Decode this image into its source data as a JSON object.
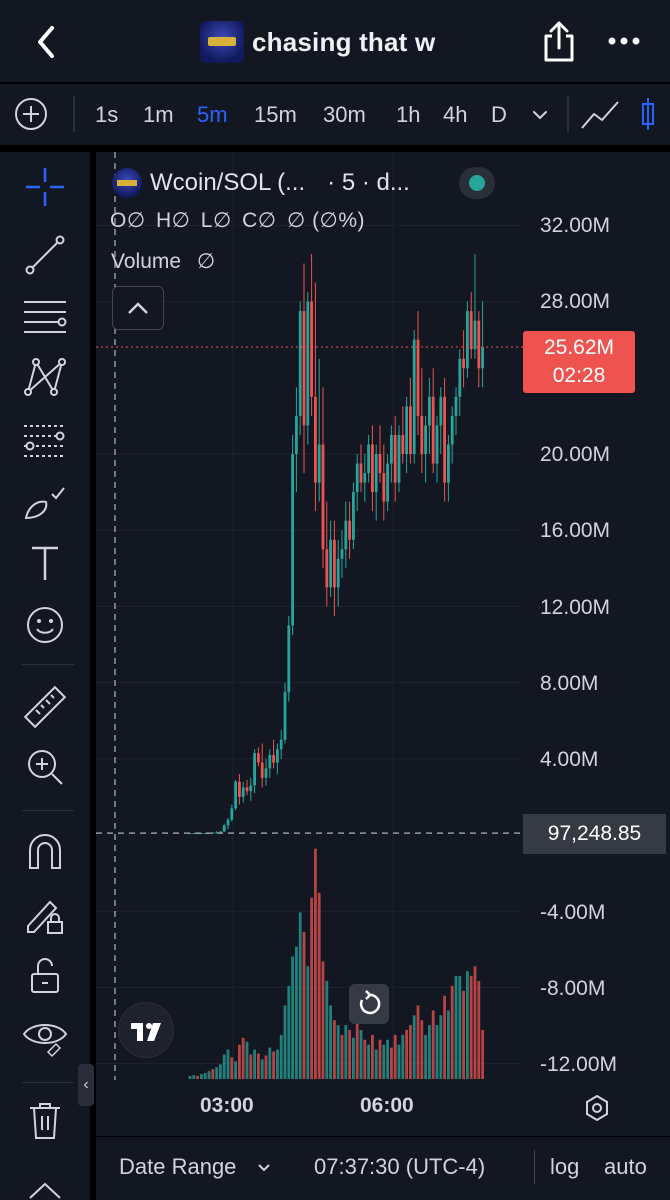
{
  "header": {
    "title": "chasing that w"
  },
  "toolbar": {
    "timeframes": [
      {
        "label": "1s",
        "active": false
      },
      {
        "label": "1m",
        "active": false
      },
      {
        "label": "5m",
        "active": true
      },
      {
        "label": "15m",
        "active": false
      },
      {
        "label": "30m",
        "active": false
      },
      {
        "label": "1h",
        "active": false
      },
      {
        "label": "4h",
        "active": false
      },
      {
        "label": "D",
        "active": false
      }
    ]
  },
  "legend": {
    "symbol": "Wcoin/SOL (...",
    "interval": "· 5 · d...",
    "ohlc": {
      "o_label": "O",
      "o_value": "∅",
      "h_label": "H",
      "h_value": "∅",
      "l_label": "L",
      "l_value": "∅",
      "c_label": "C",
      "c_value": "∅",
      "change": "∅ (∅%)"
    },
    "volume_label": "Volume",
    "volume_value": "∅"
  },
  "price_axis": {
    "labels": [
      "32.00M",
      "28.00M",
      "20.00M",
      "16.00M",
      "12.00M",
      "8.00M",
      "4.00M",
      "-4.00M",
      "-8.00M",
      "-12.00M"
    ]
  },
  "last_price": {
    "value": "25.62M",
    "countdown": "02:28"
  },
  "crosshair": {
    "value": "97,248.85"
  },
  "time_axis": {
    "labels": [
      "03:00",
      "06:00"
    ]
  },
  "footer": {
    "date_range": "Date Range",
    "clock": "07:37:30 (UTC-4)",
    "log": "log",
    "auto": "auto"
  },
  "colors": {
    "up": "#26a69a",
    "down": "#ef5350",
    "accent": "#2962ff",
    "background": "#131722",
    "grid": "#1f2330"
  },
  "chart_data": {
    "type": "candlestick",
    "ylim": [
      -14000000,
      33000000
    ],
    "y_ticks": [
      32000000,
      28000000,
      20000000,
      16000000,
      12000000,
      8000000,
      4000000,
      -4000000,
      -8000000,
      -12000000
    ],
    "last_price": 25620000,
    "crosshair_price": 97248.85,
    "x_ticks": [
      "03:00",
      "06:00"
    ],
    "candles": [
      [
        0.1,
        0.1,
        0.05,
        0.1
      ],
      [
        0.1,
        0.1,
        0.05,
        0.1
      ],
      [
        0.1,
        0.1,
        0.05,
        0.1
      ],
      [
        0.1,
        0.1,
        0.05,
        0.1
      ],
      [
        0.1,
        0.1,
        0.05,
        0.1
      ],
      [
        0.1,
        0.12,
        0.05,
        0.1
      ],
      [
        0.1,
        0.15,
        0.05,
        0.12
      ],
      [
        0.12,
        0.2,
        0.1,
        0.15
      ],
      [
        0.15,
        0.2,
        0.1,
        0.18
      ],
      [
        0.18,
        0.6,
        0.15,
        0.5
      ],
      [
        0.5,
        0.9,
        0.3,
        0.8
      ],
      [
        0.8,
        1.6,
        0.7,
        1.4
      ],
      [
        1.4,
        2.9,
        1.3,
        2.8
      ],
      [
        2.8,
        3.2,
        1.6,
        2.0
      ],
      [
        2.0,
        2.8,
        1.7,
        2.5
      ],
      [
        2.5,
        2.9,
        2.1,
        2.3
      ],
      [
        2.3,
        3.0,
        1.8,
        2.6
      ],
      [
        2.6,
        4.5,
        2.2,
        4.3
      ],
      [
        4.3,
        4.6,
        3.6,
        3.8
      ],
      [
        3.8,
        4.8,
        2.5,
        3.0
      ],
      [
        3.0,
        4.0,
        2.6,
        3.5
      ],
      [
        3.5,
        4.5,
        3.0,
        4.2
      ],
      [
        4.2,
        5.0,
        3.5,
        3.8
      ],
      [
        3.8,
        4.8,
        3.2,
        4.5
      ],
      [
        4.5,
        5.5,
        4.0,
        5.0
      ],
      [
        5.0,
        8.0,
        4.8,
        7.5
      ],
      [
        7.5,
        11.5,
        7.0,
        11.0
      ],
      [
        11.0,
        21.0,
        10.5,
        20.0
      ],
      [
        20.0,
        23.5,
        18.0,
        22.0
      ],
      [
        22.0,
        28.0,
        21.0,
        27.5
      ],
      [
        27.5,
        30.0,
        19.0,
        21.5
      ],
      [
        21.5,
        28.5,
        20.5,
        28.0
      ],
      [
        28.0,
        30.5,
        22.0,
        23.0
      ],
      [
        23.0,
        29.0,
        17.0,
        18.5
      ],
      [
        18.5,
        25.0,
        17.5,
        20.5
      ],
      [
        20.5,
        23.5,
        14.0,
        15.0
      ],
      [
        15.0,
        17.5,
        12.0,
        13.0
      ],
      [
        13.0,
        16.5,
        12.5,
        15.5
      ],
      [
        15.5,
        16.5,
        11.5,
        13.0
      ],
      [
        13.0,
        15.5,
        12.0,
        14.5
      ],
      [
        14.5,
        16.0,
        13.5,
        15.0
      ],
      [
        15.0,
        17.5,
        14.0,
        16.5
      ],
      [
        16.5,
        17.5,
        14.5,
        15.5
      ],
      [
        15.5,
        18.5,
        15.0,
        18.0
      ],
      [
        18.0,
        20.0,
        17.0,
        19.5
      ],
      [
        19.5,
        20.5,
        18.0,
        18.5
      ],
      [
        18.5,
        20.0,
        17.5,
        19.0
      ],
      [
        19.0,
        21.0,
        18.5,
        20.5
      ],
      [
        20.5,
        21.5,
        17.0,
        18.0
      ],
      [
        18.0,
        20.5,
        16.5,
        20.0
      ],
      [
        20.0,
        21.5,
        18.5,
        19.0
      ],
      [
        19.0,
        20.5,
        16.5,
        17.5
      ],
      [
        17.5,
        20.0,
        17.0,
        19.5
      ],
      [
        19.5,
        21.5,
        18.5,
        21.0
      ],
      [
        21.0,
        22.0,
        17.5,
        18.5
      ],
      [
        18.5,
        21.5,
        18.0,
        21.0
      ],
      [
        21.0,
        22.5,
        19.5,
        20.0
      ],
      [
        20.0,
        23.0,
        19.0,
        22.5
      ],
      [
        22.5,
        24.0,
        19.5,
        20.0
      ],
      [
        20.0,
        26.5,
        19.5,
        26.0
      ],
      [
        26.0,
        27.5,
        21.0,
        22.0
      ],
      [
        22.0,
        24.5,
        19.0,
        20.0
      ],
      [
        20.0,
        22.0,
        18.5,
        21.5
      ],
      [
        21.5,
        24.0,
        20.0,
        23.0
      ],
      [
        23.0,
        24.5,
        19.0,
        19.5
      ],
      [
        19.5,
        22.0,
        18.5,
        21.5
      ],
      [
        21.5,
        23.5,
        20.0,
        23.0
      ],
      [
        23.0,
        24.0,
        17.5,
        18.5
      ],
      [
        18.5,
        21.0,
        17.5,
        20.5
      ],
      [
        20.5,
        22.5,
        19.5,
        22.0
      ],
      [
        22.0,
        23.5,
        21.0,
        23.0
      ],
      [
        23.0,
        25.5,
        22.0,
        25.0
      ],
      [
        25.0,
        26.5,
        23.5,
        24.5
      ],
      [
        24.5,
        28.0,
        24.0,
        27.5
      ],
      [
        27.5,
        28.5,
        25.0,
        25.5
      ],
      [
        25.5,
        30.5,
        25.0,
        27.0
      ],
      [
        27.0,
        27.5,
        23.5,
        24.5
      ],
      [
        24.5,
        28.0,
        23.5,
        25.62
      ]
    ],
    "volume": [
      [
        0.3,
        1
      ],
      [
        0.4,
        1
      ],
      [
        0.3,
        0
      ],
      [
        0.5,
        1
      ],
      [
        0.6,
        1
      ],
      [
        0.8,
        1
      ],
      [
        1.0,
        0
      ],
      [
        1.2,
        1
      ],
      [
        1.5,
        1
      ],
      [
        2.5,
        1
      ],
      [
        3.0,
        1
      ],
      [
        2.2,
        0
      ],
      [
        1.8,
        1
      ],
      [
        3.5,
        0
      ],
      [
        4.2,
        0
      ],
      [
        3.8,
        1
      ],
      [
        2.5,
        0
      ],
      [
        3.0,
        1
      ],
      [
        2.6,
        0
      ],
      [
        2.0,
        1
      ],
      [
        2.4,
        0
      ],
      [
        3.2,
        1
      ],
      [
        2.8,
        0
      ],
      [
        3.0,
        1
      ],
      [
        4.5,
        1
      ],
      [
        7.5,
        1
      ],
      [
        9.5,
        1
      ],
      [
        12.5,
        1
      ],
      [
        13.5,
        1
      ],
      [
        17.0,
        1
      ],
      [
        15.0,
        0
      ],
      [
        11.5,
        1
      ],
      [
        18.5,
        0
      ],
      [
        23.5,
        0
      ],
      [
        19.0,
        0
      ],
      [
        12.0,
        0
      ],
      [
        10.0,
        1
      ],
      [
        7.5,
        1
      ],
      [
        6.0,
        0
      ],
      [
        5.5,
        1
      ],
      [
        4.5,
        0
      ],
      [
        5.5,
        1
      ],
      [
        5.0,
        0
      ],
      [
        4.2,
        1
      ],
      [
        6.0,
        0
      ],
      [
        5.0,
        1
      ],
      [
        4.0,
        0
      ],
      [
        3.5,
        1
      ],
      [
        4.5,
        0
      ],
      [
        3.0,
        1
      ],
      [
        4.0,
        0
      ],
      [
        3.5,
        1
      ],
      [
        4.0,
        1
      ],
      [
        3.2,
        0
      ],
      [
        4.5,
        0
      ],
      [
        3.5,
        1
      ],
      [
        4.5,
        1
      ],
      [
        5.0,
        0
      ],
      [
        5.5,
        0
      ],
      [
        6.5,
        1
      ],
      [
        7.5,
        0
      ],
      [
        6.0,
        0
      ],
      [
        4.5,
        1
      ],
      [
        5.5,
        1
      ],
      [
        7.0,
        0
      ],
      [
        5.5,
        1
      ],
      [
        6.5,
        1
      ],
      [
        8.5,
        0
      ],
      [
        7.0,
        1
      ],
      [
        9.5,
        0
      ],
      [
        10.5,
        1
      ],
      [
        10.5,
        1
      ],
      [
        9.0,
        0
      ],
      [
        11.0,
        1
      ],
      [
        10.5,
        0
      ],
      [
        11.5,
        0
      ],
      [
        10.0,
        0
      ],
      [
        5.0,
        0
      ]
    ],
    "volume_unit": "relative"
  }
}
